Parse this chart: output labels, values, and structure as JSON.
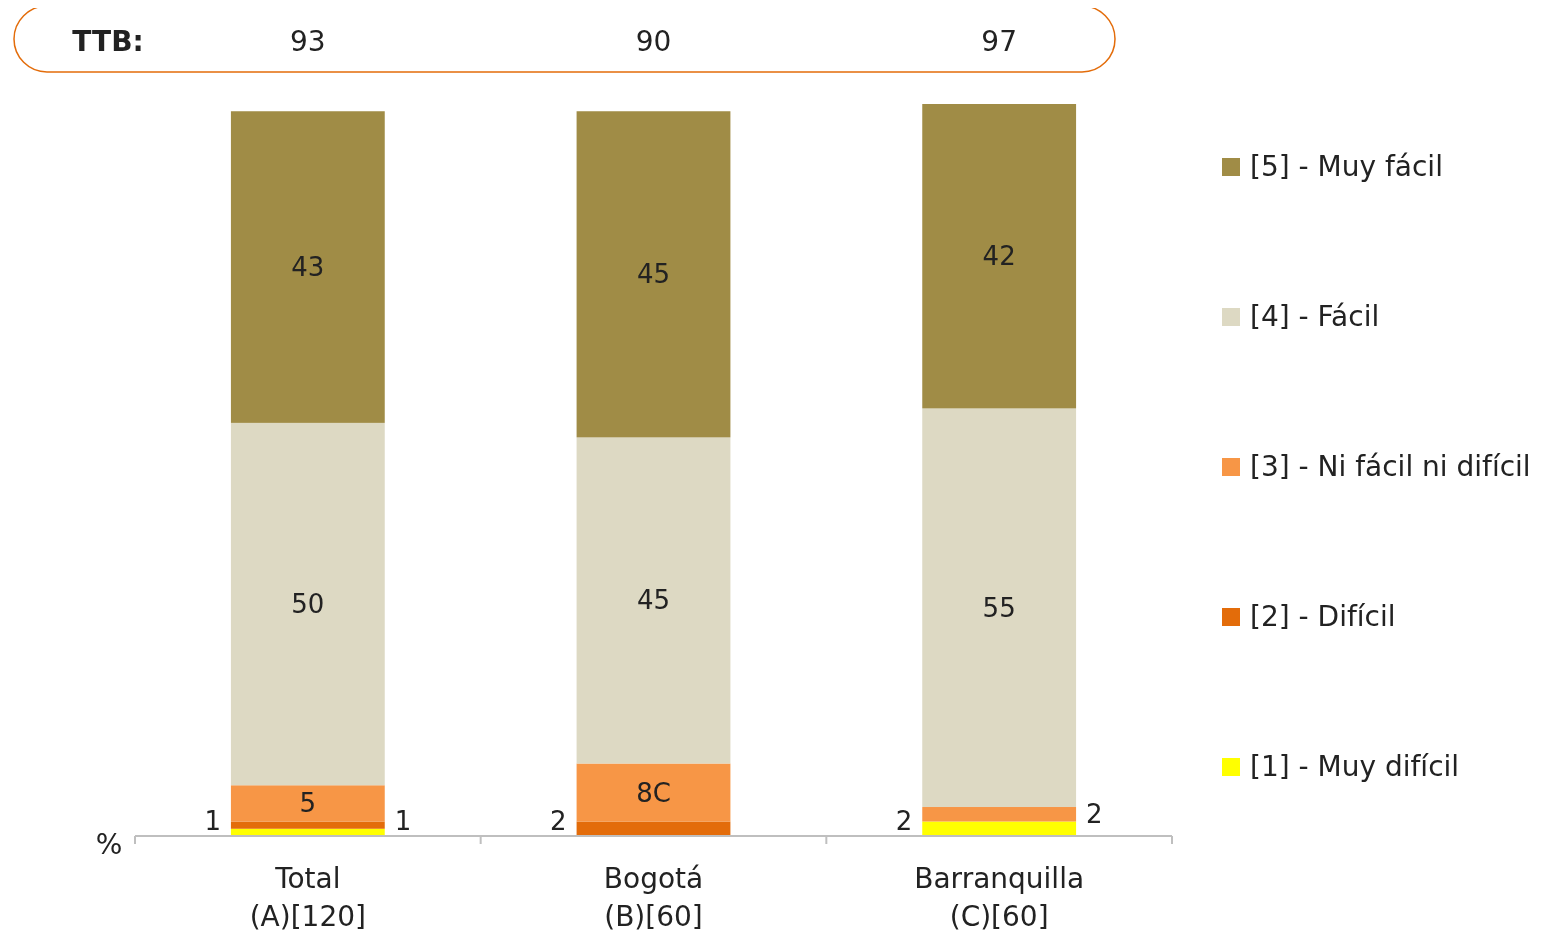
{
  "chart_data": {
    "type": "bar",
    "stacked": true,
    "ylabel": "%",
    "ylim": [
      0,
      101
    ],
    "legend": "right",
    "categories": [
      "Total\n(A)[120]",
      "Bogotá\n(B)[60]",
      "Barranquilla\n(C)[60]"
    ],
    "series": [
      {
        "name": "[1] - Muy difícil",
        "color": "#ffff00",
        "values": [
          1,
          0,
          2
        ],
        "value_labels": [
          "1",
          null,
          "2"
        ]
      },
      {
        "name": "[2] - Difícil",
        "color": "#e36c0a",
        "values": [
          1,
          2,
          0
        ],
        "value_labels": [
          "1",
          "2",
          null
        ]
      },
      {
        "name": "[3] - Ni fácil ni difícil",
        "color": "#f79646",
        "values": [
          5,
          8,
          2
        ],
        "value_labels": [
          "5",
          "8C",
          "2"
        ]
      },
      {
        "name": "[4] - Fácil",
        "color": "#ddd9c3",
        "values": [
          50,
          45,
          55
        ],
        "value_labels": [
          "50",
          "45",
          "55"
        ]
      },
      {
        "name": "[5] - Muy fácil",
        "color": "#a08c46",
        "values": [
          43,
          45,
          42
        ],
        "value_labels": [
          "43",
          "45",
          "42"
        ]
      }
    ],
    "annotations": [
      "TTB:",
      "93",
      "90",
      "97"
    ]
  }
}
